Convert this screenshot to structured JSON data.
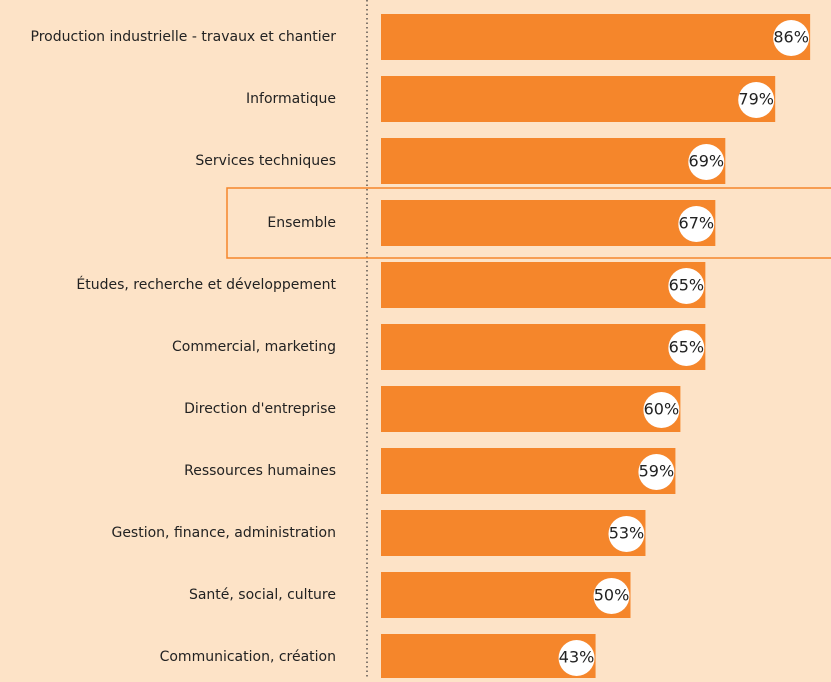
{
  "chart_data": {
    "type": "hbar",
    "categories": [
      "Production industrielle - travaux et chantier",
      "Informatique",
      "Services techniques",
      "Ensemble",
      "Études, recherche et développement",
      "Commercial, marketing",
      "Direction d'entreprise",
      "Ressources humaines",
      "Gestion, finance, administration",
      "Santé, social, culture",
      "Communication, création"
    ],
    "values": [
      86,
      79,
      69,
      67,
      65,
      65,
      60,
      59,
      53,
      50,
      43
    ],
    "value_labels": [
      "86%",
      "79%",
      "69%",
      "67%",
      "65%",
      "65%",
      "60%",
      "59%",
      "53%",
      "50%",
      "43%"
    ],
    "color": "#f5862b",
    "highlight_index": 3
  }
}
